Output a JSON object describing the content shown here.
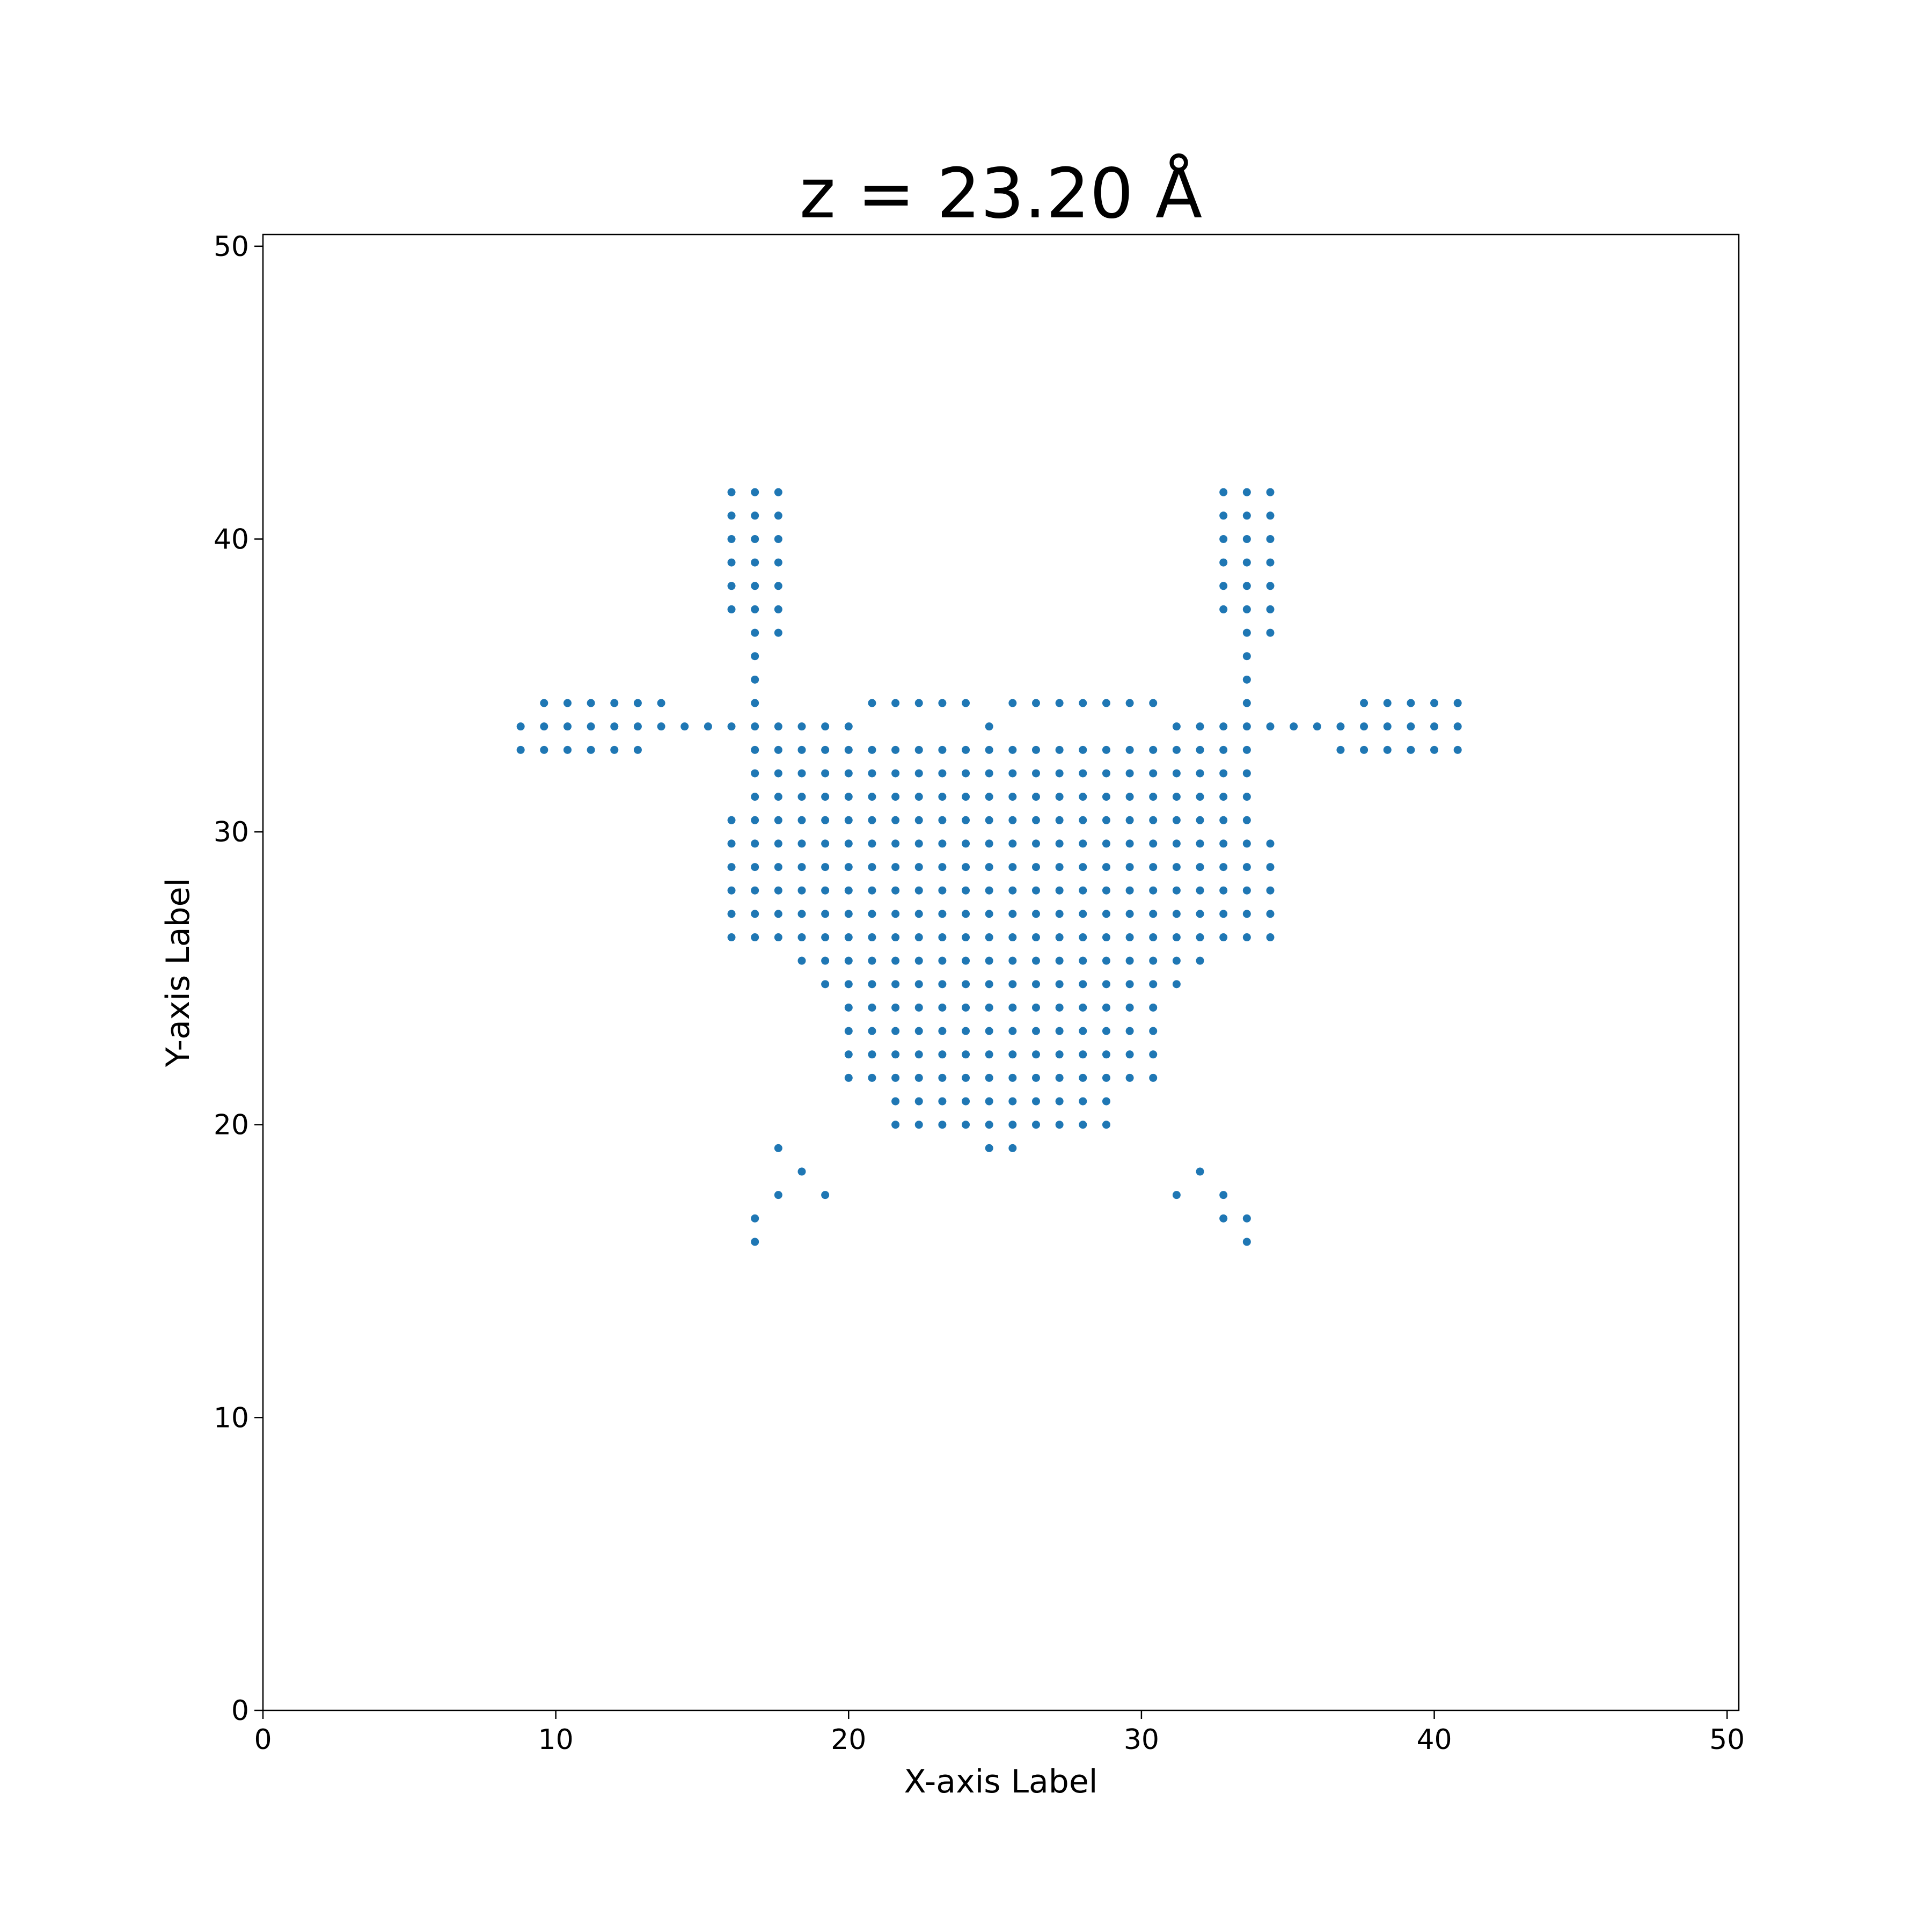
{
  "chart_data": {
    "type": "scatter",
    "title": "z = 23.20 Å",
    "xlabel": "X-axis Label",
    "ylabel": "Y-axis Label",
    "color": "#1f77b4",
    "xlim": [
      0,
      50.4
    ],
    "ylim": [
      0,
      50.4
    ],
    "xticks": [
      0,
      10,
      20,
      30,
      40,
      50
    ],
    "yticks": [
      0,
      10,
      20,
      30,
      40,
      50
    ],
    "x": [
      16.0,
      16.8,
      17.6,
      32.8,
      33.6,
      34.4,
      16.0,
      16.8,
      17.6,
      32.8,
      33.6,
      34.4,
      16.0,
      16.8,
      17.6,
      32.8,
      33.6,
      34.4,
      16.0,
      16.8,
      17.6,
      32.8,
      33.6,
      34.4,
      16.0,
      16.8,
      17.6,
      32.8,
      33.6,
      34.4,
      16.0,
      16.8,
      17.6,
      32.8,
      33.6,
      34.4,
      16.8,
      17.6,
      33.6,
      34.4,
      16.8,
      33.6,
      16.8,
      33.6,
      9.6,
      10.4,
      11.2,
      12.0,
      12.8,
      13.6,
      16.8,
      20.8,
      21.6,
      22.4,
      23.2,
      24.0,
      25.6,
      26.4,
      27.2,
      28.0,
      28.8,
      29.6,
      30.4,
      33.6,
      37.6,
      38.4,
      39.2,
      40.0,
      40.8,
      8.8,
      9.6,
      10.4,
      11.2,
      12.0,
      12.8,
      13.6,
      14.4,
      15.2,
      16.0,
      16.8,
      17.6,
      18.4,
      19.2,
      20.0,
      24.8,
      31.2,
      32.0,
      32.8,
      33.6,
      34.4,
      35.2,
      36.0,
      36.8,
      37.6,
      38.4,
      39.2,
      40.0,
      40.8,
      8.8,
      9.6,
      10.4,
      11.2,
      12.0,
      12.8,
      16.8,
      17.6,
      18.4,
      19.2,
      20.0,
      20.8,
      21.6,
      22.4,
      23.2,
      24.0,
      24.8,
      25.6,
      26.4,
      27.2,
      28.0,
      28.8,
      29.6,
      30.4,
      31.2,
      32.0,
      32.8,
      33.6,
      36.8,
      37.6,
      38.4,
      39.2,
      40.0,
      40.8,
      16.8,
      17.6,
      18.4,
      19.2,
      20.0,
      20.8,
      21.6,
      22.4,
      23.2,
      24.0,
      24.8,
      25.6,
      26.4,
      27.2,
      28.0,
      28.8,
      29.6,
      30.4,
      31.2,
      32.0,
      32.8,
      33.6,
      16.8,
      17.6,
      18.4,
      19.2,
      20.0,
      20.8,
      21.6,
      22.4,
      23.2,
      24.0,
      24.8,
      25.6,
      26.4,
      27.2,
      28.0,
      28.8,
      29.6,
      30.4,
      31.2,
      32.0,
      32.8,
      33.6,
      16.0,
      16.8,
      17.6,
      18.4,
      19.2,
      20.0,
      20.8,
      21.6,
      22.4,
      23.2,
      24.0,
      24.8,
      25.6,
      26.4,
      27.2,
      28.0,
      28.8,
      29.6,
      30.4,
      31.2,
      32.0,
      32.8,
      33.6,
      16.0,
      16.8,
      17.6,
      18.4,
      19.2,
      20.0,
      20.8,
      21.6,
      22.4,
      23.2,
      24.0,
      24.8,
      25.6,
      26.4,
      27.2,
      28.0,
      28.8,
      29.6,
      30.4,
      31.2,
      32.0,
      32.8,
      33.6,
      34.4,
      16.0,
      16.8,
      17.6,
      18.4,
      19.2,
      20.0,
      20.8,
      21.6,
      22.4,
      23.2,
      24.0,
      24.8,
      25.6,
      26.4,
      27.2,
      28.0,
      28.8,
      29.6,
      30.4,
      31.2,
      32.0,
      32.8,
      33.6,
      34.4,
      16.0,
      16.8,
      17.6,
      18.4,
      19.2,
      20.0,
      20.8,
      21.6,
      22.4,
      23.2,
      24.0,
      24.8,
      25.6,
      26.4,
      27.2,
      28.0,
      28.8,
      29.6,
      30.4,
      31.2,
      32.0,
      32.8,
      33.6,
      34.4,
      16.0,
      16.8,
      17.6,
      18.4,
      19.2,
      20.0,
      20.8,
      21.6,
      22.4,
      23.2,
      24.0,
      24.8,
      25.6,
      26.4,
      27.2,
      28.0,
      28.8,
      29.6,
      30.4,
      31.2,
      32.0,
      32.8,
      33.6,
      34.4,
      16.0,
      16.8,
      17.6,
      18.4,
      19.2,
      20.0,
      20.8,
      21.6,
      22.4,
      23.2,
      24.0,
      24.8,
      25.6,
      26.4,
      27.2,
      28.0,
      28.8,
      29.6,
      30.4,
      31.2,
      32.0,
      32.8,
      33.6,
      34.4,
      18.4,
      19.2,
      20.0,
      20.8,
      21.6,
      22.4,
      23.2,
      24.0,
      24.8,
      25.6,
      26.4,
      27.2,
      28.0,
      28.8,
      29.6,
      30.4,
      31.2,
      32.0,
      19.2,
      20.0,
      20.8,
      21.6,
      22.4,
      23.2,
      24.0,
      24.8,
      25.6,
      26.4,
      27.2,
      28.0,
      28.8,
      29.6,
      30.4,
      31.2,
      20.0,
      20.8,
      21.6,
      22.4,
      23.2,
      24.0,
      24.8,
      25.6,
      26.4,
      27.2,
      28.0,
      28.8,
      29.6,
      30.4,
      20.0,
      20.8,
      21.6,
      22.4,
      23.2,
      24.0,
      24.8,
      25.6,
      26.4,
      27.2,
      28.0,
      28.8,
      29.6,
      30.4,
      20.0,
      20.8,
      21.6,
      22.4,
      23.2,
      24.0,
      24.8,
      25.6,
      26.4,
      27.2,
      28.0,
      28.8,
      29.6,
      30.4,
      20.0,
      20.8,
      21.6,
      22.4,
      23.2,
      24.0,
      24.8,
      25.6,
      26.4,
      27.2,
      28.0,
      28.8,
      29.6,
      30.4,
      21.6,
      22.4,
      23.2,
      24.0,
      24.8,
      25.6,
      26.4,
      27.2,
      28.0,
      28.8,
      21.6,
      22.4,
      23.2,
      24.0,
      24.8,
      25.6,
      26.4,
      27.2,
      28.0,
      28.8,
      17.6,
      24.8,
      25.6,
      18.4,
      32.0,
      17.6,
      19.2,
      31.2,
      32.8,
      16.8,
      32.8,
      33.6,
      16.8,
      33.6
    ],
    "y": [
      41.6,
      41.6,
      41.6,
      41.6,
      41.6,
      41.6,
      40.8,
      40.8,
      40.8,
      40.8,
      40.8,
      40.8,
      40.0,
      40.0,
      40.0,
      40.0,
      40.0,
      40.0,
      39.2,
      39.2,
      39.2,
      39.2,
      39.2,
      39.2,
      38.4,
      38.4,
      38.4,
      38.4,
      38.4,
      38.4,
      37.6,
      37.6,
      37.6,
      37.6,
      37.6,
      37.6,
      36.8,
      36.8,
      36.8,
      36.8,
      36.0,
      36.0,
      35.2,
      35.2,
      34.4,
      34.4,
      34.4,
      34.4,
      34.4,
      34.4,
      34.4,
      34.4,
      34.4,
      34.4,
      34.4,
      34.4,
      34.4,
      34.4,
      34.4,
      34.4,
      34.4,
      34.4,
      34.4,
      34.4,
      34.4,
      34.4,
      34.4,
      34.4,
      34.4,
      33.6,
      33.6,
      33.6,
      33.6,
      33.6,
      33.6,
      33.6,
      33.6,
      33.6,
      33.6,
      33.6,
      33.6,
      33.6,
      33.6,
      33.6,
      33.6,
      33.6,
      33.6,
      33.6,
      33.6,
      33.6,
      33.6,
      33.6,
      33.6,
      33.6,
      33.6,
      33.6,
      33.6,
      33.6,
      32.8,
      32.8,
      32.8,
      32.8,
      32.8,
      32.8,
      32.8,
      32.8,
      32.8,
      32.8,
      32.8,
      32.8,
      32.8,
      32.8,
      32.8,
      32.8,
      32.8,
      32.8,
      32.8,
      32.8,
      32.8,
      32.8,
      32.8,
      32.8,
      32.8,
      32.8,
      32.8,
      32.8,
      32.8,
      32.8,
      32.8,
      32.8,
      32.8,
      32.8,
      32.0,
      32.0,
      32.0,
      32.0,
      32.0,
      32.0,
      32.0,
      32.0,
      32.0,
      32.0,
      32.0,
      32.0,
      32.0,
      32.0,
      32.0,
      32.0,
      32.0,
      32.0,
      32.0,
      32.0,
      32.0,
      32.0,
      31.2,
      31.2,
      31.2,
      31.2,
      31.2,
      31.2,
      31.2,
      31.2,
      31.2,
      31.2,
      31.2,
      31.2,
      31.2,
      31.2,
      31.2,
      31.2,
      31.2,
      31.2,
      31.2,
      31.2,
      31.2,
      31.2,
      30.4,
      30.4,
      30.4,
      30.4,
      30.4,
      30.4,
      30.4,
      30.4,
      30.4,
      30.4,
      30.4,
      30.4,
      30.4,
      30.4,
      30.4,
      30.4,
      30.4,
      30.4,
      30.4,
      30.4,
      30.4,
      30.4,
      30.4,
      29.6,
      29.6,
      29.6,
      29.6,
      29.6,
      29.6,
      29.6,
      29.6,
      29.6,
      29.6,
      29.6,
      29.6,
      29.6,
      29.6,
      29.6,
      29.6,
      29.6,
      29.6,
      29.6,
      29.6,
      29.6,
      29.6,
      29.6,
      29.6,
      28.8,
      28.8,
      28.8,
      28.8,
      28.8,
      28.8,
      28.8,
      28.8,
      28.8,
      28.8,
      28.8,
      28.8,
      28.8,
      28.8,
      28.8,
      28.8,
      28.8,
      28.8,
      28.8,
      28.8,
      28.8,
      28.8,
      28.8,
      28.8,
      28.0,
      28.0,
      28.0,
      28.0,
      28.0,
      28.0,
      28.0,
      28.0,
      28.0,
      28.0,
      28.0,
      28.0,
      28.0,
      28.0,
      28.0,
      28.0,
      28.0,
      28.0,
      28.0,
      28.0,
      28.0,
      28.0,
      28.0,
      28.0,
      27.2,
      27.2,
      27.2,
      27.2,
      27.2,
      27.2,
      27.2,
      27.2,
      27.2,
      27.2,
      27.2,
      27.2,
      27.2,
      27.2,
      27.2,
      27.2,
      27.2,
      27.2,
      27.2,
      27.2,
      27.2,
      27.2,
      27.2,
      27.2,
      26.4,
      26.4,
      26.4,
      26.4,
      26.4,
      26.4,
      26.4,
      26.4,
      26.4,
      26.4,
      26.4,
      26.4,
      26.4,
      26.4,
      26.4,
      26.4,
      26.4,
      26.4,
      26.4,
      26.4,
      26.4,
      26.4,
      26.4,
      26.4,
      25.6,
      25.6,
      25.6,
      25.6,
      25.6,
      25.6,
      25.6,
      25.6,
      25.6,
      25.6,
      25.6,
      25.6,
      25.6,
      25.6,
      25.6,
      25.6,
      25.6,
      25.6,
      24.8,
      24.8,
      24.8,
      24.8,
      24.8,
      24.8,
      24.8,
      24.8,
      24.8,
      24.8,
      24.8,
      24.8,
      24.8,
      24.8,
      24.8,
      24.8,
      24.0,
      24.0,
      24.0,
      24.0,
      24.0,
      24.0,
      24.0,
      24.0,
      24.0,
      24.0,
      24.0,
      24.0,
      24.0,
      24.0,
      23.2,
      23.2,
      23.2,
      23.2,
      23.2,
      23.2,
      23.2,
      23.2,
      23.2,
      23.2,
      23.2,
      23.2,
      23.2,
      23.2,
      22.4,
      22.4,
      22.4,
      22.4,
      22.4,
      22.4,
      22.4,
      22.4,
      22.4,
      22.4,
      22.4,
      22.4,
      22.4,
      22.4,
      21.6,
      21.6,
      21.6,
      21.6,
      21.6,
      21.6,
      21.6,
      21.6,
      21.6,
      21.6,
      21.6,
      21.6,
      21.6,
      21.6,
      20.8,
      20.8,
      20.8,
      20.8,
      20.8,
      20.8,
      20.8,
      20.8,
      20.8,
      20.8,
      20.0,
      20.0,
      20.0,
      20.0,
      20.0,
      20.0,
      20.0,
      20.0,
      20.0,
      20.0,
      19.2,
      19.2,
      19.2,
      18.4,
      18.4,
      17.6,
      17.6,
      17.6,
      17.6,
      16.8,
      16.8,
      16.8,
      16.0,
      16.0
    ]
  }
}
